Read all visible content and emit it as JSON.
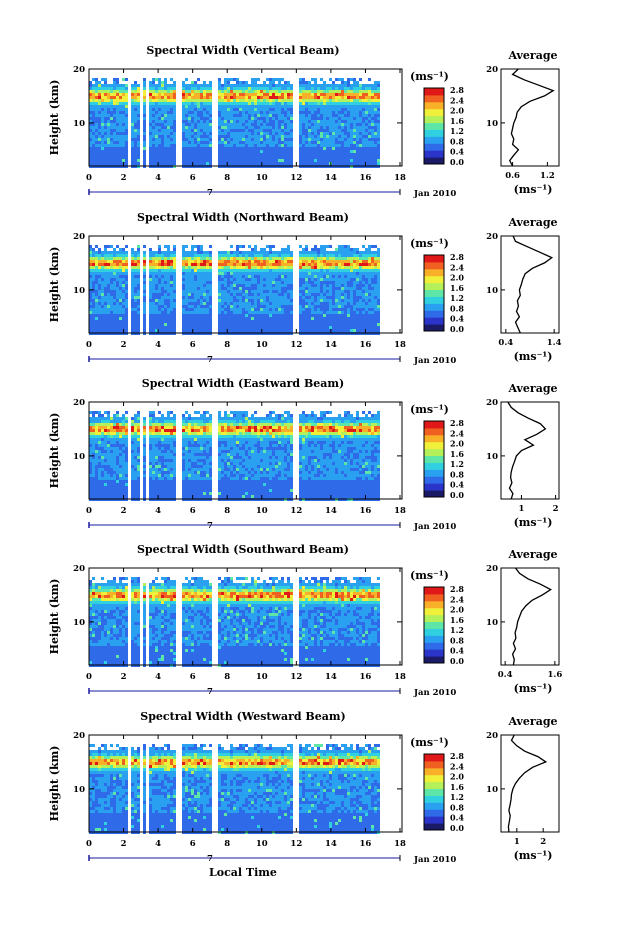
{
  "figure": {
    "xaxis_label": "Local Time",
    "date_label": "Jan 2010",
    "ylabel": "Height (km)",
    "unit_label": "(ms⁻¹)",
    "avg_title": "Average",
    "avg_xlabel": "(ms⁻¹)",
    "x_ticks": [
      "0",
      "2",
      "4",
      "6",
      "8",
      "10",
      "12",
      "14",
      "16",
      "18"
    ],
    "x_marker": "7",
    "y_ticks": [
      "20",
      "10"
    ],
    "colorbar_ticks": [
      "2.8",
      "2.4",
      "2.0",
      "1.6",
      "1.2",
      "0.8",
      "0.4",
      "0.0"
    ],
    "colors": {
      "axis": "#000000",
      "gap": "#ffffff",
      "marker": "#1a1aa0",
      "colormap": [
        "#1a1a66",
        "#2a34c8",
        "#2f6ae8",
        "#2aa0f0",
        "#30d0e0",
        "#5ee6a8",
        "#b4f05a",
        "#f0f03a",
        "#f8b028",
        "#f06020",
        "#e01818"
      ]
    }
  },
  "chart_data": [
    {
      "type": "heatmap",
      "title": "Spectral Width (Vertical Beam)",
      "xlabel": "Local Time",
      "ylabel": "Height (km)",
      "xlim": [
        0,
        18
      ],
      "ylim": [
        2,
        20
      ],
      "colorbar": {
        "label": "(ms⁻¹)",
        "range": [
          0.0,
          2.8
        ]
      },
      "data_gaps_hours": [
        [
          2.2,
          2.4
        ],
        [
          2.8,
          3.0
        ],
        [
          3.2,
          3.4
        ],
        [
          4.9,
          5.3
        ],
        [
          7.0,
          7.3
        ],
        [
          11.8,
          12.1
        ]
      ],
      "data_end_hour": 16.7,
      "average_profile": {
        "title": "Average",
        "xlabel": "(ms⁻¹)",
        "x_ticks": [
          "0.6",
          "1.2"
        ],
        "xlim": [
          0.4,
          1.4
        ],
        "height_km": [
          2,
          3,
          4,
          5,
          6,
          7,
          8,
          9,
          10,
          11,
          12,
          13,
          14,
          15,
          16,
          17,
          18,
          19,
          20
        ],
        "width_ms": [
          0.6,
          0.55,
          0.62,
          0.7,
          0.6,
          0.62,
          0.58,
          0.6,
          0.62,
          0.66,
          0.68,
          0.75,
          0.9,
          1.15,
          1.3,
          1.05,
          0.8,
          0.6,
          0.7
        ]
      }
    },
    {
      "type": "heatmap",
      "title": "Spectral Width (Northward Beam)",
      "xlabel": "Local Time",
      "ylabel": "Height (km)",
      "xlim": [
        0,
        18
      ],
      "ylim": [
        2,
        20
      ],
      "colorbar": {
        "label": "(ms⁻¹)",
        "range": [
          0.0,
          2.8
        ]
      },
      "data_gaps_hours": [
        [
          2.2,
          2.4
        ],
        [
          2.8,
          3.0
        ],
        [
          3.2,
          3.4
        ],
        [
          4.9,
          5.3
        ],
        [
          7.0,
          7.3
        ],
        [
          11.8,
          12.1
        ]
      ],
      "data_end_hour": 16.7,
      "average_profile": {
        "title": "Average",
        "xlabel": "(ms⁻¹)",
        "x_ticks": [
          "0.4",
          "1.4"
        ],
        "xlim": [
          0.3,
          1.5
        ],
        "height_km": [
          2,
          3,
          4,
          5,
          6,
          7,
          8,
          9,
          10,
          11,
          12,
          13,
          14,
          15,
          16,
          17,
          18,
          19,
          20
        ],
        "width_ms": [
          0.7,
          0.65,
          0.6,
          0.68,
          0.62,
          0.66,
          0.64,
          0.7,
          0.68,
          0.72,
          0.75,
          0.8,
          0.95,
          1.2,
          1.35,
          1.1,
          0.85,
          0.6,
          0.55
        ]
      }
    },
    {
      "type": "heatmap",
      "title": "Spectral Width (Eastward Beam)",
      "xlabel": "Local Time",
      "ylabel": "Height (km)",
      "xlim": [
        0,
        18
      ],
      "ylim": [
        2,
        20
      ],
      "colorbar": {
        "label": "(ms⁻¹)",
        "range": [
          0.0,
          2.8
        ]
      },
      "data_gaps_hours": [
        [
          2.2,
          2.4
        ],
        [
          2.8,
          3.0
        ],
        [
          3.2,
          3.4
        ],
        [
          4.9,
          5.3
        ],
        [
          7.0,
          7.3
        ],
        [
          11.8,
          12.1
        ]
      ],
      "data_end_hour": 16.7,
      "average_profile": {
        "title": "Average",
        "xlabel": "(ms⁻¹)",
        "x_ticks": [
          "1",
          "2"
        ],
        "xlim": [
          0.4,
          2.1
        ],
        "height_km": [
          2,
          3,
          4,
          5,
          6,
          7,
          8,
          9,
          10,
          11,
          12,
          13,
          14,
          15,
          16,
          17,
          18,
          19,
          20
        ],
        "width_ms": [
          0.7,
          0.75,
          0.65,
          0.72,
          0.68,
          0.7,
          0.74,
          0.8,
          0.85,
          1.0,
          1.35,
          1.1,
          1.45,
          1.7,
          1.55,
          1.2,
          0.9,
          0.7,
          0.6
        ]
      }
    },
    {
      "type": "heatmap",
      "title": "Spectral Width (Southward Beam)",
      "xlabel": "Local Time",
      "ylabel": "Height (km)",
      "xlim": [
        0,
        18
      ],
      "ylim": [
        2,
        20
      ],
      "colorbar": {
        "label": "(ms⁻¹)",
        "range": [
          0.0,
          2.8
        ]
      },
      "data_gaps_hours": [
        [
          2.2,
          2.4
        ],
        [
          2.8,
          3.0
        ],
        [
          3.2,
          3.4
        ],
        [
          4.9,
          5.3
        ],
        [
          7.0,
          7.3
        ],
        [
          11.8,
          12.1
        ]
      ],
      "data_end_hour": 16.7,
      "average_profile": {
        "title": "Average",
        "xlabel": "(ms⁻¹)",
        "x_ticks": [
          "0.4",
          "1.6"
        ],
        "xlim": [
          0.3,
          1.7
        ],
        "height_km": [
          2,
          3,
          4,
          5,
          6,
          7,
          8,
          9,
          10,
          11,
          12,
          13,
          14,
          15,
          16,
          17,
          18,
          19,
          20
        ],
        "width_ms": [
          0.6,
          0.62,
          0.58,
          0.65,
          0.6,
          0.66,
          0.64,
          0.68,
          0.7,
          0.75,
          0.8,
          0.9,
          1.05,
          1.3,
          1.5,
          1.25,
          0.95,
          0.75,
          0.65
        ]
      }
    },
    {
      "type": "heatmap",
      "title": "Spectral Width (Westward Beam)",
      "xlabel": "Local Time",
      "ylabel": "Height (km)",
      "xlim": [
        0,
        18
      ],
      "ylim": [
        2,
        20
      ],
      "colorbar": {
        "label": "(ms⁻¹)",
        "range": [
          0.0,
          2.8
        ]
      },
      "data_gaps_hours": [
        [
          2.2,
          2.4
        ],
        [
          2.8,
          3.0
        ],
        [
          3.2,
          3.4
        ],
        [
          4.9,
          5.3
        ],
        [
          7.0,
          7.3
        ],
        [
          11.8,
          12.1
        ]
      ],
      "data_end_hour": 16.7,
      "average_profile": {
        "title": "Average",
        "xlabel": "(ms⁻¹)",
        "x_ticks": [
          "1",
          "2"
        ],
        "xlim": [
          0.4,
          2.6
        ],
        "height_km": [
          2,
          3,
          4,
          5,
          6,
          7,
          8,
          9,
          10,
          11,
          12,
          13,
          14,
          15,
          16,
          17,
          18,
          19,
          20
        ],
        "width_ms": [
          0.7,
          0.68,
          0.72,
          0.75,
          0.7,
          0.74,
          0.78,
          0.8,
          0.85,
          0.95,
          1.1,
          1.3,
          1.6,
          2.1,
          1.8,
          1.3,
          1.0,
          0.8,
          0.9
        ]
      }
    }
  ]
}
